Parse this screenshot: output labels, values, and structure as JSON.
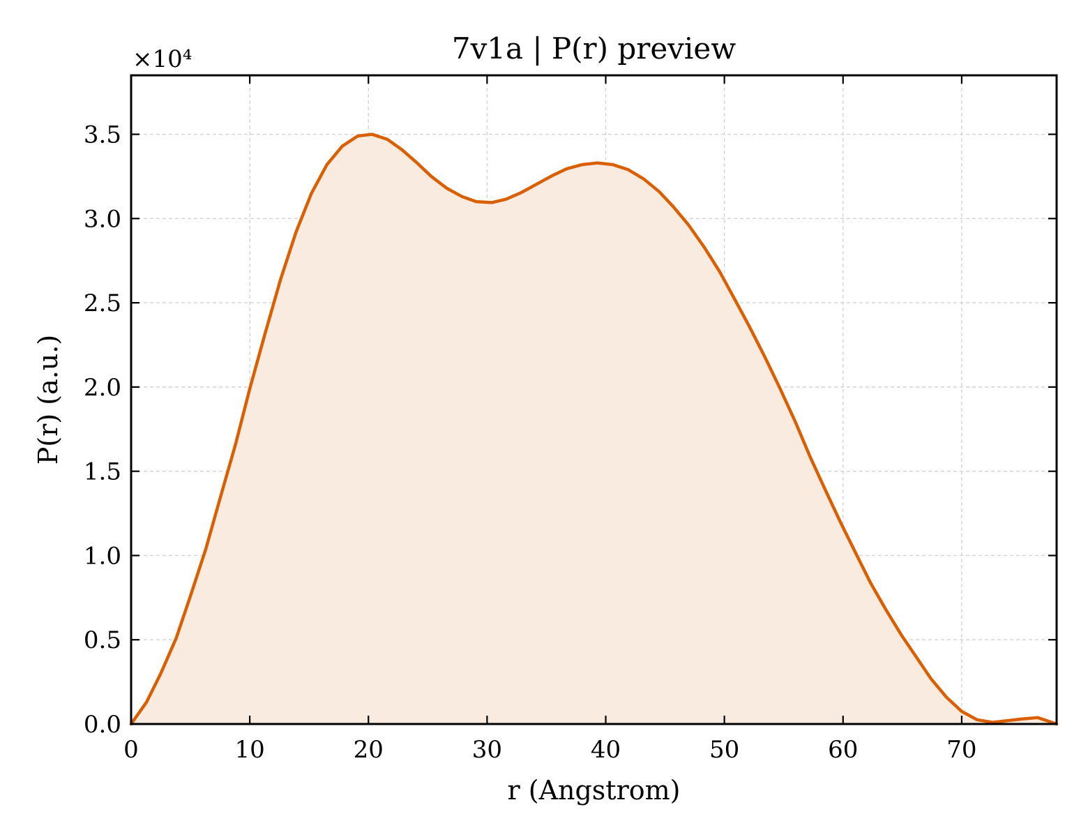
{
  "chart_data": {
    "type": "area",
    "title": "7v1a | P(r) preview",
    "xlabel": "r (Angstrom)",
    "ylabel": "P(r) (a.u.)",
    "y_offset_label": "×10⁴",
    "xlim": [
      0,
      78
    ],
    "ylim": [
      0,
      38500
    ],
    "x_ticks": [
      0,
      10,
      20,
      30,
      40,
      50,
      60,
      70
    ],
    "x_tick_labels": [
      "0",
      "10",
      "20",
      "30",
      "40",
      "50",
      "60",
      "70"
    ],
    "y_ticks": [
      0,
      5000,
      10000,
      15000,
      20000,
      25000,
      30000,
      35000
    ],
    "y_tick_labels": [
      "0.0",
      "0.5",
      "1.0",
      "1.5",
      "2.0",
      "2.5",
      "3.0",
      "3.5"
    ],
    "grid": true,
    "colors": {
      "line": "#d95f02",
      "fill": "#f9ebe0"
    },
    "series": [
      {
        "x": [
          0,
          1.3,
          2.5,
          3.8,
          5.0,
          6.3,
          7.5,
          8.8,
          10.0,
          11.3,
          12.6,
          13.9,
          15.2,
          16.5,
          17.8,
          19.1,
          20.3,
          21.6,
          22.8,
          24.1,
          25.3,
          26.6,
          27.9,
          29.1,
          30.4,
          31.6,
          32.9,
          34.2,
          35.5,
          36.7,
          38.0,
          39.3,
          40.6,
          41.9,
          43.2,
          44.5,
          45.7,
          47.0,
          48.3,
          49.6,
          50.8,
          52.1,
          53.4,
          54.7,
          56.0,
          57.2,
          58.5,
          59.8,
          61.1,
          62.3,
          63.6,
          64.9,
          66.2,
          67.4,
          68.7,
          70.0,
          71.3,
          72.6,
          73.9,
          75.1,
          76.4,
          77.6,
          78.0
        ],
        "y": [
          0,
          1300,
          3000,
          5100,
          7600,
          10400,
          13400,
          16600,
          19900,
          23200,
          26400,
          29200,
          31500,
          33200,
          34300,
          34900,
          35000,
          34700,
          34100,
          33300,
          32500,
          31800,
          31300,
          31000,
          30950,
          31150,
          31550,
          32050,
          32550,
          32950,
          33200,
          33300,
          33200,
          32900,
          32350,
          31600,
          30700,
          29600,
          28300,
          26850,
          25300,
          23600,
          21800,
          19900,
          17900,
          15900,
          13900,
          11950,
          10100,
          8400,
          6800,
          5300,
          3950,
          2700,
          1600,
          750,
          250,
          100,
          200,
          300,
          380,
          100,
          0
        ]
      }
    ]
  }
}
